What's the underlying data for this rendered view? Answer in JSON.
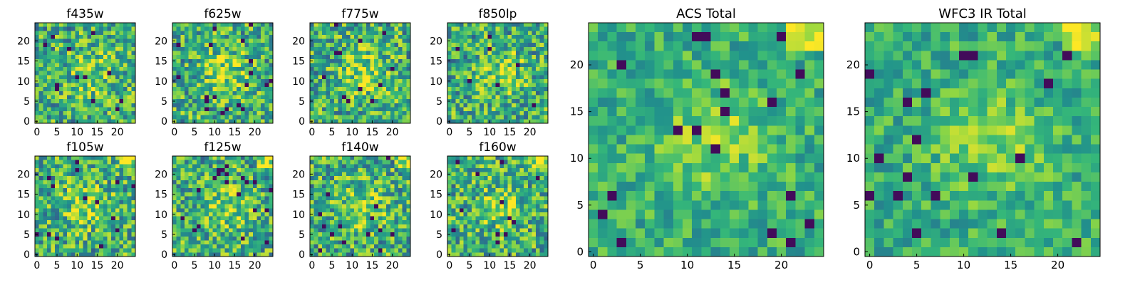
{
  "chart_data": [
    {
      "type": "heatmap",
      "title": "f435w",
      "xticks": [
        0,
        5,
        10,
        15,
        20
      ],
      "yticks": [
        0,
        5,
        10,
        15,
        20
      ],
      "extent": [
        0,
        24
      ]
    },
    {
      "type": "heatmap",
      "title": "f625w",
      "xticks": [
        0,
        5,
        10,
        15,
        20
      ],
      "yticks": [
        0,
        5,
        10,
        15,
        20
      ],
      "extent": [
        0,
        24
      ]
    },
    {
      "type": "heatmap",
      "title": "f775w",
      "xticks": [
        0,
        5,
        10,
        15,
        20
      ],
      "yticks": [
        0,
        5,
        10,
        15,
        20
      ],
      "extent": [
        0,
        24
      ]
    },
    {
      "type": "heatmap",
      "title": "f850lp",
      "xticks": [
        0,
        5,
        10,
        15,
        20
      ],
      "yticks": [
        0,
        5,
        10,
        15,
        20
      ],
      "extent": [
        0,
        24
      ]
    },
    {
      "type": "heatmap",
      "title": "f105w",
      "xticks": [
        0,
        5,
        10,
        15,
        20
      ],
      "yticks": [
        0,
        5,
        10,
        15,
        20
      ],
      "extent": [
        0,
        24
      ]
    },
    {
      "type": "heatmap",
      "title": "f125w",
      "xticks": [
        0,
        5,
        10,
        15,
        20
      ],
      "yticks": [
        0,
        5,
        10,
        15,
        20
      ],
      "extent": [
        0,
        24
      ]
    },
    {
      "type": "heatmap",
      "title": "f140w",
      "xticks": [
        0,
        5,
        10,
        15,
        20
      ],
      "yticks": [
        0,
        5,
        10,
        15,
        20
      ],
      "extent": [
        0,
        24
      ]
    },
    {
      "type": "heatmap",
      "title": "f160w",
      "xticks": [
        0,
        5,
        10,
        15,
        20
      ],
      "yticks": [
        0,
        5,
        10,
        15,
        20
      ],
      "extent": [
        0,
        24
      ]
    },
    {
      "type": "heatmap",
      "title": "ACS Total",
      "xticks": [
        0,
        5,
        10,
        15,
        20
      ],
      "yticks": [
        0,
        5,
        10,
        15,
        20
      ],
      "extent": [
        0,
        24
      ]
    },
    {
      "type": "heatmap",
      "title": "WFC3 IR Total",
      "xticks": [
        0,
        5,
        10,
        15,
        20
      ],
      "yticks": [
        0,
        5,
        10,
        15,
        20
      ],
      "extent": [
        0,
        24
      ]
    }
  ],
  "colormap": [
    "#440154",
    "#31688e",
    "#21918c",
    "#35b779",
    "#90d743",
    "#fde725"
  ]
}
